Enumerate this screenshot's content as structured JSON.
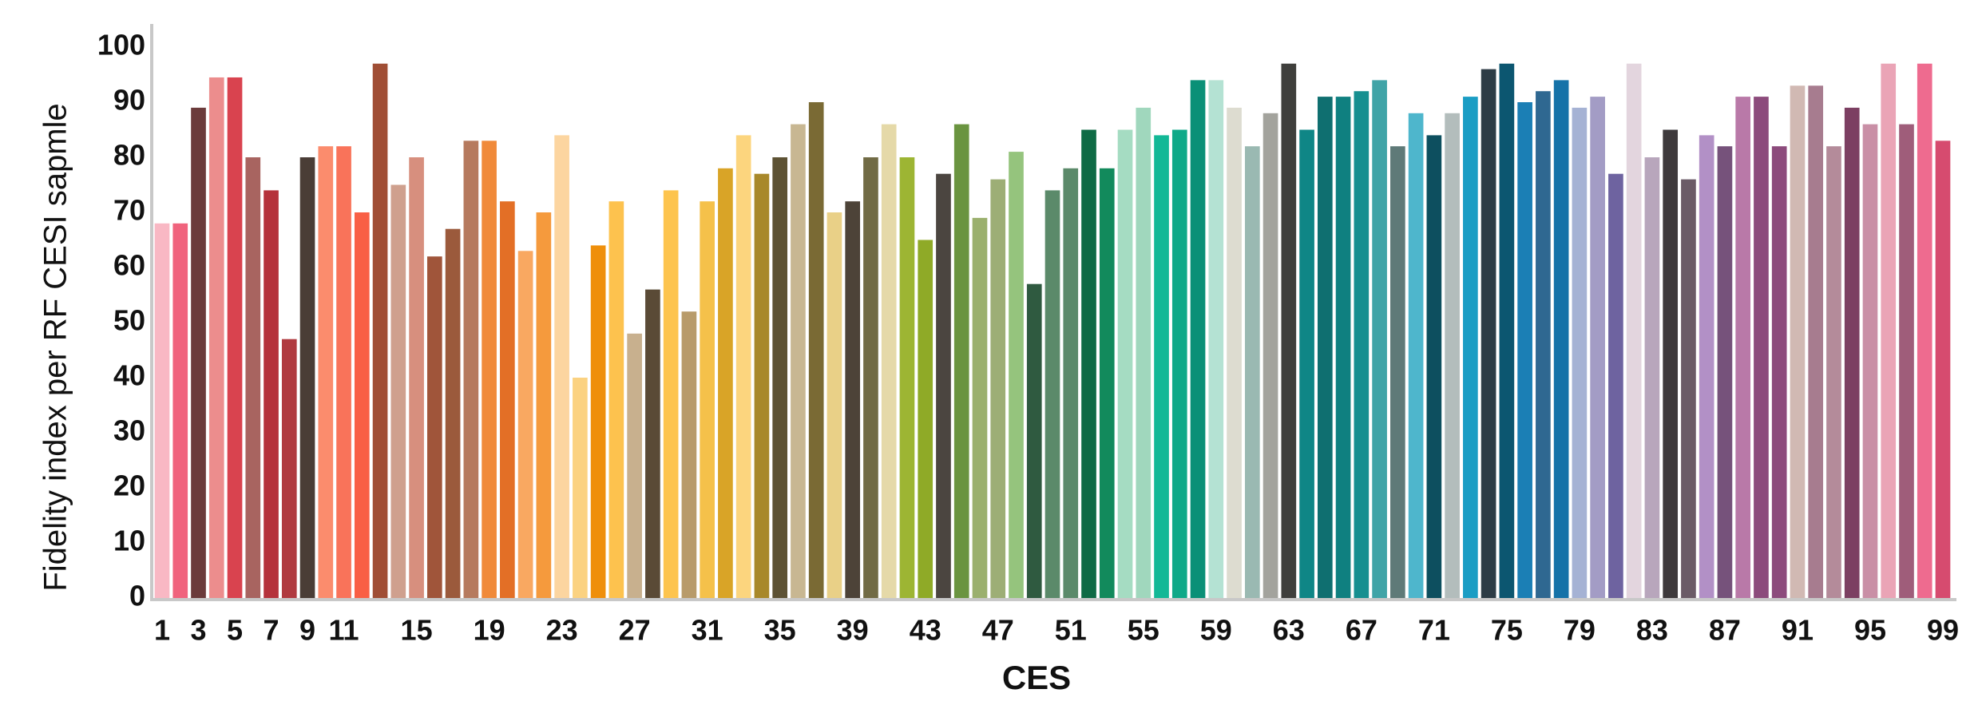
{
  "chart_data": {
    "type": "bar",
    "x_label": "CES",
    "y_label": "Fidelity index per RF CESI sapmle",
    "categories": [
      "1",
      null,
      "3",
      null,
      "5",
      null,
      "7",
      null,
      "9",
      null,
      "11",
      null,
      null,
      null,
      "15",
      null,
      null,
      null,
      "19",
      null,
      null,
      null,
      "23",
      null,
      null,
      null,
      "27",
      null,
      null,
      null,
      "31",
      null,
      null,
      null,
      "35",
      null,
      null,
      null,
      "39",
      null,
      null,
      null,
      "43",
      null,
      null,
      null,
      "47",
      null,
      null,
      null,
      "51",
      null,
      null,
      null,
      "55",
      null,
      null,
      null,
      "59",
      null,
      null,
      null,
      "63",
      null,
      null,
      null,
      "67",
      null,
      null,
      null,
      "71",
      null,
      null,
      null,
      "75",
      null,
      null,
      null,
      "79",
      null,
      null,
      null,
      "83",
      null,
      null,
      null,
      "87",
      null,
      null,
      null,
      "91",
      null,
      null,
      null,
      "95",
      null,
      null,
      null,
      "99"
    ],
    "values": [
      68,
      68,
      89,
      94.5,
      94.5,
      80,
      74,
      47,
      80,
      82,
      82,
      70,
      97,
      75,
      80,
      62,
      67,
      83,
      83,
      72,
      63,
      70,
      84,
      40,
      64,
      72,
      48,
      56,
      74,
      52,
      72,
      78,
      84,
      77,
      80,
      86,
      90,
      70,
      72,
      80,
      86,
      80,
      65,
      77,
      86,
      69,
      76,
      81,
      57,
      74,
      78,
      85,
      78,
      85,
      89,
      84,
      85,
      94,
      94,
      89,
      82,
      88,
      97,
      85,
      91,
      91,
      92,
      94,
      82,
      88,
      84,
      88,
      91,
      96,
      97,
      90,
      92,
      94,
      89,
      91,
      77,
      97,
      80,
      85,
      76,
      84,
      82,
      91,
      91,
      82,
      93,
      93,
      82,
      89,
      86,
      97,
      86,
      97,
      83
    ],
    "colors": [
      "#f9b8c4",
      "#f0637d",
      "#6b3b3b",
      "#ec8d8d",
      "#d9434f",
      "#a86460",
      "#b5323b",
      "#b03a3f",
      "#4a3d36",
      "#fb8c6d",
      "#f9735a",
      "#f95f45",
      "#a04e35",
      "#cfa08e",
      "#d78f7e",
      "#a0553a",
      "#9b5a3c",
      "#b67a5e",
      "#f08a3a",
      "#e36f26",
      "#f9a861",
      "#f59a3d",
      "#fcd5a0",
      "#fbd281",
      "#ef8f0b",
      "#fdc24e",
      "#c8b08e",
      "#5a4a36",
      "#fdc44e",
      "#b89b6a",
      "#f5c14a",
      "#d9a427",
      "#fcd57e",
      "#a8882a",
      "#5d5234",
      "#c8b792",
      "#7a6a34",
      "#e9d087",
      "#4d4338",
      "#716b45",
      "#e5d9a8",
      "#9db533",
      "#8faa27",
      "#4b4540",
      "#6a9440",
      "#9bb06e",
      "#9dae76",
      "#95c47d",
      "#2f5a40",
      "#5b8a6a",
      "#5b8a6a",
      "#0f6b45",
      "#128a5c",
      "#a5dcc2",
      "#a0d7bd",
      "#12b896",
      "#0fa988",
      "#0a9077",
      "#b4e2d3",
      "#dddcd0",
      "#9ab9b2",
      "#a3a39d",
      "#3f3f3c",
      "#0f8686",
      "#0f6f70",
      "#0f8080",
      "#168f90",
      "#40a4a7",
      "#5f7a78",
      "#4eb6cc",
      "#0d4f5f",
      "#b3bdbc",
      "#1a9dc4",
      "#2d3c45",
      "#0c5670",
      "#1b7fb5",
      "#2f6891",
      "#1572a8",
      "#a5b2d4",
      "#a39cc5",
      "#6e63a0",
      "#e3d5de",
      "#b8a6bc",
      "#3e3a3c",
      "#6b5b67",
      "#b290c6",
      "#76527b",
      "#b979a8",
      "#8c4b7c",
      "#8c4b7c",
      "#d1b9b3",
      "#a77c8f",
      "#b48b9a",
      "#7c3f62",
      "#c98fa6",
      "#eaa4b6",
      "#9f5d7a",
      "#ee6b8f",
      "#d64b6f"
    ],
    "ylim": [
      0,
      100
    ],
    "yticks": [
      0,
      10,
      20,
      30,
      40,
      50,
      60,
      70,
      80,
      90,
      100
    ],
    "grid": false
  }
}
